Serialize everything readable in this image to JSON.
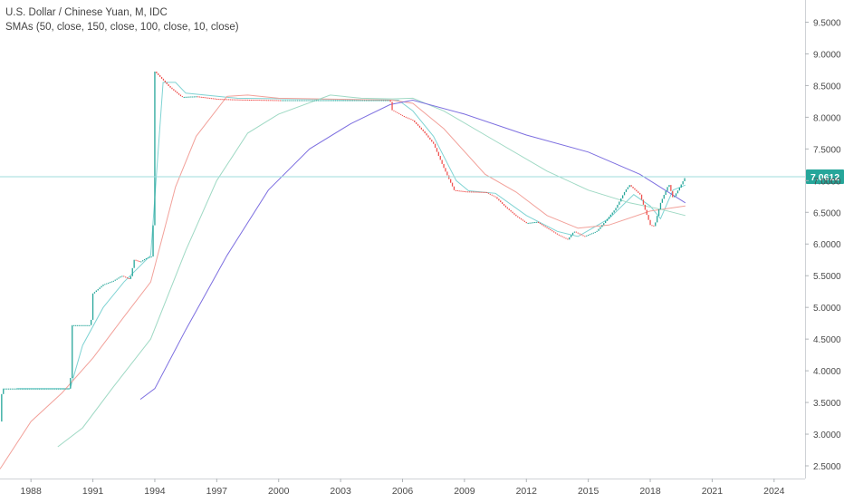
{
  "legend": {
    "title": "U.S. Dollar / Chinese Yuan, M, IDC",
    "studies": "SMAs (50, close, 150, close, 100, close, 10, close)"
  },
  "colors": {
    "up": "#26a69a",
    "down": "#ef5350",
    "sma10": "#7fd3d3",
    "sma50": "#f2a19a",
    "sma100": "#9fd9c4",
    "sma150": "#7d6fe0",
    "price_line": "#9fdede",
    "price_label_bg": "#26a69a"
  },
  "chart_data": {
    "type": "line",
    "series_kind": "candlestick monthly",
    "x_ticks": [
      "1988",
      "1991",
      "1994",
      "1997",
      "2000",
      "2003",
      "2006",
      "2009",
      "2012",
      "2015",
      "2018",
      "2021",
      "2024"
    ],
    "y_ticks": [
      "2.5000",
      "3.0000",
      "3.5000",
      "4.0000",
      "4.5000",
      "5.0000",
      "5.5000",
      "6.0000",
      "6.5000",
      "7.0000",
      "7.5000",
      "8.0000",
      "8.5000",
      "9.0000",
      "9.5000"
    ],
    "xlim": [
      1986.5,
      2025.5
    ],
    "ylim": [
      2.3,
      9.85
    ],
    "last_price": "7.0612",
    "last_price_value": 7.0612,
    "price": [
      [
        1986.5,
        3.2
      ],
      [
        1986.6,
        3.72
      ],
      [
        1989.9,
        3.72
      ],
      [
        1990.0,
        4.72
      ],
      [
        1990.9,
        4.72
      ],
      [
        1991.0,
        5.22
      ],
      [
        1991.5,
        5.36
      ],
      [
        1992.0,
        5.42
      ],
      [
        1992.4,
        5.5
      ],
      [
        1992.8,
        5.44
      ],
      [
        1993.0,
        5.75
      ],
      [
        1993.3,
        5.72
      ],
      [
        1993.6,
        5.78
      ],
      [
        1993.9,
        5.81
      ],
      [
        1994.0,
        8.72
      ],
      [
        1994.3,
        8.62
      ],
      [
        1994.7,
        8.48
      ],
      [
        1995.0,
        8.4
      ],
      [
        1995.3,
        8.32
      ],
      [
        1996.0,
        8.33
      ],
      [
        1997.0,
        8.29
      ],
      [
        1998.0,
        8.28
      ],
      [
        2000.0,
        8.27
      ],
      [
        2003.0,
        8.27
      ],
      [
        2005.4,
        8.27
      ],
      [
        2005.5,
        8.11
      ],
      [
        2006.0,
        8.02
      ],
      [
        2006.5,
        7.95
      ],
      [
        2007.0,
        7.78
      ],
      [
        2007.5,
        7.58
      ],
      [
        2008.0,
        7.2
      ],
      [
        2008.5,
        6.85
      ],
      [
        2009.0,
        6.83
      ],
      [
        2010.0,
        6.82
      ],
      [
        2010.5,
        6.74
      ],
      [
        2011.0,
        6.58
      ],
      [
        2011.5,
        6.44
      ],
      [
        2012.0,
        6.33
      ],
      [
        2012.5,
        6.35
      ],
      [
        2013.0,
        6.25
      ],
      [
        2013.5,
        6.15
      ],
      [
        2014.0,
        6.07
      ],
      [
        2014.3,
        6.2
      ],
      [
        2014.8,
        6.12
      ],
      [
        2015.4,
        6.2
      ],
      [
        2015.8,
        6.35
      ],
      [
        2016.3,
        6.55
      ],
      [
        2016.8,
        6.85
      ],
      [
        2017.0,
        6.93
      ],
      [
        2017.5,
        6.78
      ],
      [
        2018.0,
        6.3
      ],
      [
        2018.2,
        6.28
      ],
      [
        2018.5,
        6.65
      ],
      [
        2018.9,
        6.95
      ],
      [
        2019.1,
        6.72
      ],
      [
        2019.4,
        6.88
      ],
      [
        2019.7,
        7.06
      ]
    ],
    "series": [
      {
        "name": "SMA 10",
        "values": [
          [
            1987.3,
            3.72
          ],
          [
            1989.9,
            3.72
          ],
          [
            1990.5,
            4.4
          ],
          [
            1991.5,
            5.0
          ],
          [
            1992.5,
            5.4
          ],
          [
            1993.8,
            5.82
          ],
          [
            1994.4,
            8.55
          ],
          [
            1995.0,
            8.55
          ],
          [
            1995.5,
            8.38
          ],
          [
            1998.0,
            8.3
          ],
          [
            2005.8,
            8.27
          ],
          [
            2006.5,
            8.1
          ],
          [
            2007.5,
            7.7
          ],
          [
            2008.6,
            7.0
          ],
          [
            2009.2,
            6.84
          ],
          [
            2010.5,
            6.8
          ],
          [
            2012.0,
            6.45
          ],
          [
            2013.5,
            6.2
          ],
          [
            2014.5,
            6.12
          ],
          [
            2016.0,
            6.4
          ],
          [
            2017.2,
            6.78
          ],
          [
            2018.0,
            6.6
          ],
          [
            2018.5,
            6.4
          ],
          [
            2019.1,
            6.85
          ],
          [
            2019.7,
            6.93
          ]
        ]
      },
      {
        "name": "SMA 50",
        "values": [
          [
            1986.5,
            2.45
          ],
          [
            1988.0,
            3.2
          ],
          [
            1989.5,
            3.65
          ],
          [
            1991.0,
            4.2
          ],
          [
            1992.5,
            4.85
          ],
          [
            1993.8,
            5.4
          ],
          [
            1995.0,
            6.9
          ],
          [
            1996.0,
            7.7
          ],
          [
            1997.5,
            8.33
          ],
          [
            1998.5,
            8.35
          ],
          [
            2000.0,
            8.3
          ],
          [
            2005.5,
            8.27
          ],
          [
            2006.5,
            8.22
          ],
          [
            2008.0,
            7.82
          ],
          [
            2010.0,
            7.1
          ],
          [
            2011.5,
            6.82
          ],
          [
            2013.0,
            6.45
          ],
          [
            2014.5,
            6.25
          ],
          [
            2016.0,
            6.3
          ],
          [
            2018.0,
            6.52
          ],
          [
            2019.7,
            6.6
          ]
        ]
      },
      {
        "name": "SMA 100",
        "values": [
          [
            1989.3,
            2.8
          ],
          [
            1990.5,
            3.1
          ],
          [
            1992.0,
            3.75
          ],
          [
            1993.8,
            4.5
          ],
          [
            1995.5,
            5.9
          ],
          [
            1997.0,
            7.0
          ],
          [
            1998.5,
            7.75
          ],
          [
            2000.0,
            8.05
          ],
          [
            2002.5,
            8.35
          ],
          [
            2004.0,
            8.3
          ],
          [
            2005.5,
            8.29
          ],
          [
            2006.5,
            8.3
          ],
          [
            2008.0,
            8.1
          ],
          [
            2010.0,
            7.72
          ],
          [
            2013.0,
            7.15
          ],
          [
            2015.0,
            6.85
          ],
          [
            2017.0,
            6.65
          ],
          [
            2018.5,
            6.55
          ],
          [
            2019.7,
            6.45
          ]
        ]
      },
      {
        "name": "SMA 150",
        "values": [
          [
            1993.3,
            3.55
          ],
          [
            1994.0,
            3.72
          ],
          [
            1995.5,
            4.65
          ],
          [
            1997.5,
            5.82
          ],
          [
            1999.5,
            6.85
          ],
          [
            2001.5,
            7.5
          ],
          [
            2003.5,
            7.9
          ],
          [
            2005.4,
            8.2
          ],
          [
            2006.5,
            8.27
          ],
          [
            2009.0,
            8.05
          ],
          [
            2012.0,
            7.72
          ],
          [
            2015.0,
            7.45
          ],
          [
            2017.5,
            7.1
          ],
          [
            2019.7,
            6.65
          ]
        ]
      }
    ]
  }
}
